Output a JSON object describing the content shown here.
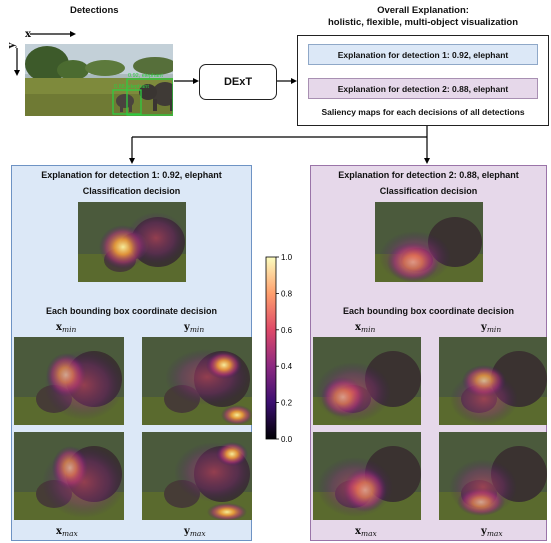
{
  "detections": {
    "title": "Detections",
    "axis_x": "x",
    "axis_y": "y",
    "box_labels": [
      "0.92, elephant",
      "0.88, elephant"
    ]
  },
  "dext": {
    "label": "DExT"
  },
  "overall": {
    "title_line1": "Overall Explanation:",
    "title_line2": "holistic, flexible, multi-object visualization",
    "item1": "Explanation for detection 1: 0.92, elephant",
    "item2": "Explanation for detection 2: 0.88, elephant",
    "caption": "Saliency maps for each decisions of all detections"
  },
  "panels": [
    {
      "title": "Explanation for detection 1: 0.92, elephant",
      "classification": "Classification decision",
      "bbox": "Each bounding box coordinate decision"
    },
    {
      "title": "Explanation for detection 2: 0.88, elephant",
      "classification": "Classification decision",
      "bbox": "Each bounding box coordinate decision"
    }
  ],
  "coords": {
    "var": "x",
    "var_y": "y",
    "min": "min",
    "max": "max"
  },
  "colorbar": {
    "ticks": [
      "1.0",
      "0.8",
      "0.6",
      "0.4",
      "0.2",
      "0.0"
    ]
  },
  "colors": {
    "panel1_bg": "#dce8f7",
    "panel1_border": "#6e93c4",
    "panel2_bg": "#e6d8ea",
    "panel2_border": "#9a74a8",
    "box_green": "#2ecc40"
  }
}
